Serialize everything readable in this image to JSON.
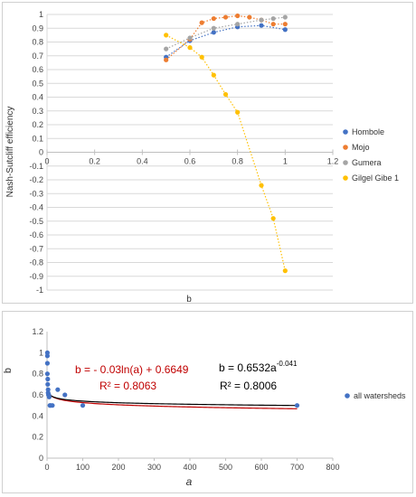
{
  "chart_data": [
    {
      "type": "scatter",
      "xlabel": "b",
      "ylabel": "Nash-Sutcliff efficiency",
      "xlim": [
        0,
        1.2
      ],
      "ylim": [
        -1,
        1
      ],
      "x_ticks": [
        "0",
        "0.2",
        "0.4",
        "0.6",
        "0.8",
        "1",
        "1.2"
      ],
      "y_ticks": [
        "1",
        "0.9",
        "0.8",
        "0.7",
        "0.6",
        "0.5",
        "0.4",
        "0.3",
        "0.2",
        "0.1",
        "0",
        "-0.1",
        "-0.2",
        "-0.3",
        "-0.4",
        "-0.5",
        "-0.6",
        "-0.7",
        "-0.8",
        "-0.9",
        "-1"
      ],
      "grid": true,
      "legend": "right",
      "series": [
        {
          "name": "Hombole",
          "color": "#4472c4",
          "x": [
            0.5,
            0.6,
            0.7,
            0.8,
            0.9,
            1.0
          ],
          "y": [
            0.69,
            0.81,
            0.87,
            0.91,
            0.92,
            0.89
          ]
        },
        {
          "name": "Mojo",
          "color": "#ed7d31",
          "x": [
            0.5,
            0.6,
            0.65,
            0.7,
            0.75,
            0.8,
            0.85,
            0.9,
            0.95,
            1.0
          ],
          "y": [
            0.67,
            0.82,
            0.94,
            0.97,
            0.98,
            0.99,
            0.98,
            0.96,
            0.93,
            0.93
          ]
        },
        {
          "name": "Gumera",
          "color": "#a5a5a5",
          "x": [
            0.5,
            0.6,
            0.7,
            0.8,
            0.9,
            0.95,
            1.0
          ],
          "y": [
            0.75,
            0.83,
            0.9,
            0.93,
            0.96,
            0.97,
            0.98
          ]
        },
        {
          "name": "Gilgel Gibe 1",
          "color": "#ffc000",
          "x": [
            0.5,
            0.6,
            0.65,
            0.7,
            0.75,
            0.8,
            0.9,
            0.95,
            1.0
          ],
          "y": [
            0.85,
            0.76,
            0.69,
            0.56,
            0.42,
            0.29,
            -0.24,
            -0.48,
            -0.86
          ]
        }
      ]
    },
    {
      "type": "scatter",
      "xlabel": "a",
      "ylabel": "b",
      "xlim": [
        0,
        800
      ],
      "ylim": [
        0,
        1.2
      ],
      "x_ticks": [
        "0",
        "100",
        "200",
        "300",
        "400",
        "500",
        "600",
        "700",
        "800"
      ],
      "y_ticks": [
        "0",
        "0.2",
        "0.4",
        "0.6",
        "0.8",
        "1",
        "1.2"
      ],
      "legend": "right",
      "series": [
        {
          "name": "all watersheds",
          "color": "#4472c4",
          "x": [
            1,
            1,
            1,
            1,
            2,
            2,
            3,
            3,
            4,
            5,
            6,
            8,
            10,
            15,
            30,
            50,
            100,
            700
          ],
          "y": [
            1.0,
            0.97,
            0.9,
            0.8,
            0.75,
            0.7,
            0.65,
            0.62,
            0.6,
            0.6,
            0.58,
            0.5,
            0.5,
            0.5,
            0.65,
            0.6,
            0.5,
            0.5
          ]
        }
      ],
      "trendlines": [
        {
          "label": "b = - 0.03ln(a) + 0.6649",
          "r2_label": "R² = 0.8063",
          "kind": "log",
          "coef": -0.03,
          "intercept": 0.6649,
          "color": "#c00000"
        },
        {
          "label": "b = 0.6532a",
          "exponent_label": "-0.041",
          "r2_label": "R² = 0.8006",
          "kind": "power",
          "coef": 0.6532,
          "exponent": -0.041,
          "color": "#000000"
        }
      ]
    }
  ]
}
